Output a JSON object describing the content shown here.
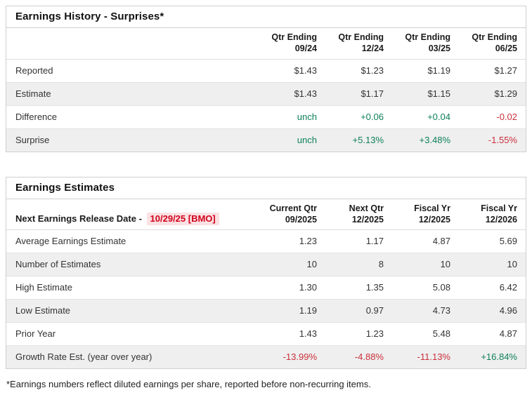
{
  "colors": {
    "positive": "#0e8158",
    "negative": "#c9303c",
    "date_text": "#d0021b",
    "date_bg": "#fbe1e3"
  },
  "history_table": {
    "title": "Earnings History - Surprises*",
    "columns": [
      {
        "line1": "Qtr Ending",
        "line2": "09/24"
      },
      {
        "line1": "Qtr Ending",
        "line2": "12/24"
      },
      {
        "line1": "Qtr Ending",
        "line2": "03/25"
      },
      {
        "line1": "Qtr Ending",
        "line2": "06/25"
      }
    ],
    "rows": [
      {
        "label": "Reported",
        "values": [
          "$1.43",
          "$1.23",
          "$1.19",
          "$1.27"
        ],
        "trend": [
          "plain",
          "plain",
          "plain",
          "plain"
        ]
      },
      {
        "label": "Estimate",
        "values": [
          "$1.43",
          "$1.17",
          "$1.15",
          "$1.29"
        ],
        "trend": [
          "plain",
          "plain",
          "plain",
          "plain"
        ]
      },
      {
        "label": "Difference",
        "values": [
          "unch",
          "+0.06",
          "+0.04",
          "-0.02"
        ],
        "trend": [
          "pos",
          "pos",
          "pos",
          "neg"
        ]
      },
      {
        "label": "Surprise",
        "values": [
          "unch",
          "+5.13%",
          "+3.48%",
          "-1.55%"
        ],
        "trend": [
          "pos",
          "pos",
          "pos",
          "neg"
        ]
      }
    ]
  },
  "estimates_table": {
    "title": "Earnings Estimates",
    "release_label": "Next Earnings Release Date -",
    "release_date": "10/29/25 [BMO]",
    "columns": [
      {
        "line1": "Current Qtr",
        "line2": "09/2025"
      },
      {
        "line1": "Next Qtr",
        "line2": "12/2025"
      },
      {
        "line1": "Fiscal Yr",
        "line2": "12/2025"
      },
      {
        "line1": "Fiscal Yr",
        "line2": "12/2026"
      }
    ],
    "rows": [
      {
        "label": "Average Earnings Estimate",
        "values": [
          "1.23",
          "1.17",
          "4.87",
          "5.69"
        ],
        "trend": [
          "plain",
          "plain",
          "plain",
          "plain"
        ]
      },
      {
        "label": "Number of Estimates",
        "values": [
          "10",
          "8",
          "10",
          "10"
        ],
        "trend": [
          "plain",
          "plain",
          "plain",
          "plain"
        ]
      },
      {
        "label": "High Estimate",
        "values": [
          "1.30",
          "1.35",
          "5.08",
          "6.42"
        ],
        "trend": [
          "plain",
          "plain",
          "plain",
          "plain"
        ]
      },
      {
        "label": "Low Estimate",
        "values": [
          "1.19",
          "0.97",
          "4.73",
          "4.96"
        ],
        "trend": [
          "plain",
          "plain",
          "plain",
          "plain"
        ]
      },
      {
        "label": "Prior Year",
        "values": [
          "1.43",
          "1.23",
          "5.48",
          "4.87"
        ],
        "trend": [
          "plain",
          "plain",
          "plain",
          "plain"
        ]
      },
      {
        "label": "Growth Rate Est. (year over year)",
        "values": [
          "-13.99%",
          "-4.88%",
          "-11.13%",
          "+16.84%"
        ],
        "trend": [
          "neg",
          "neg",
          "neg",
          "pos"
        ]
      }
    ]
  },
  "footnote": "*Earnings numbers reflect diluted earnings per share, reported before non-recurring items."
}
